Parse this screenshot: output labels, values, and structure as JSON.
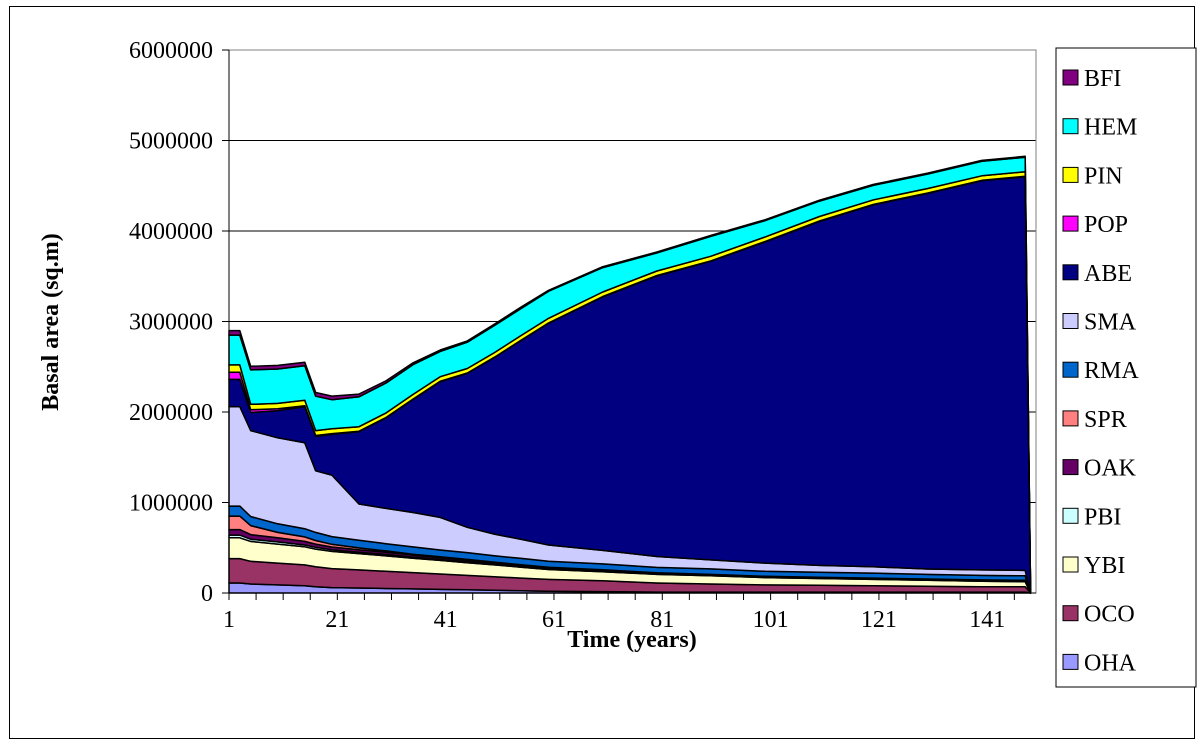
{
  "chart_data": {
    "type": "area",
    "stacked": true,
    "xlabel": "Time (years)",
    "ylabel": "Basal area (sq.m)",
    "xlim": [
      1,
      150
    ],
    "ylim": [
      0,
      6000000
    ],
    "x_ticks": [
      "1",
      "21",
      "41",
      "61",
      "81",
      "101",
      "121",
      "141"
    ],
    "y_ticks": [
      "0",
      "1000000",
      "2000000",
      "3000000",
      "4000000",
      "5000000",
      "6000000"
    ],
    "grid": "horizontal",
    "legend_position": "right",
    "x": [
      1,
      3,
      5,
      10,
      15,
      17,
      20,
      25,
      30,
      35,
      40,
      45,
      50,
      55,
      60,
      70,
      80,
      90,
      100,
      110,
      120,
      130,
      140,
      148,
      149
    ],
    "series": [
      {
        "name": "OHA",
        "color": "#9999ff",
        "values": [
          110000,
          110000,
          100000,
          90000,
          80000,
          70000,
          60000,
          55000,
          50000,
          45000,
          40000,
          35000,
          30000,
          25000,
          20000,
          15000,
          10000,
          10000,
          10000,
          10000,
          10000,
          10000,
          10000,
          10000,
          0
        ]
      },
      {
        "name": "OCO",
        "color": "#993366",
        "values": [
          270000,
          270000,
          250000,
          240000,
          230000,
          220000,
          210000,
          200000,
          190000,
          180000,
          170000,
          160000,
          150000,
          140000,
          130000,
          120000,
          100000,
          90000,
          80000,
          75000,
          70000,
          65000,
          60000,
          60000,
          0
        ]
      },
      {
        "name": "YBI",
        "color": "#ffffcc",
        "values": [
          230000,
          230000,
          220000,
          210000,
          200000,
          195000,
          190000,
          180000,
          170000,
          160000,
          150000,
          140000,
          130000,
          120000,
          110000,
          100000,
          95000,
          90000,
          80000,
          75000,
          70000,
          65000,
          60000,
          55000,
          0
        ]
      },
      {
        "name": "PBI",
        "color": "#ccffff",
        "values": [
          30000,
          30000,
          25000,
          25000,
          20000,
          20000,
          18000,
          15000,
          15000,
          12000,
          10000,
          10000,
          10000,
          8000,
          8000,
          6000,
          5000,
          5000,
          5000,
          5000,
          5000,
          5000,
          5000,
          5000,
          0
        ]
      },
      {
        "name": "OAK",
        "color": "#660066",
        "values": [
          60000,
          60000,
          50000,
          45000,
          40000,
          35000,
          30000,
          28000,
          25000,
          22000,
          20000,
          18000,
          16000,
          14000,
          12000,
          10000,
          8000,
          6000,
          5000,
          5000,
          5000,
          5000,
          5000,
          5000,
          0
        ]
      },
      {
        "name": "SPR",
        "color": "#ff8080",
        "values": [
          150000,
          150000,
          100000,
          60000,
          50000,
          40000,
          30000,
          20000,
          15000,
          10000,
          10000,
          8000,
          5000,
          5000,
          5000,
          5000,
          5000,
          5000,
          5000,
          5000,
          5000,
          5000,
          5000,
          5000,
          0
        ]
      },
      {
        "name": "RMA",
        "color": "#0066cc",
        "values": [
          110000,
          110000,
          100000,
          95000,
          90000,
          90000,
          85000,
          85000,
          80000,
          80000,
          75000,
          75000,
          70000,
          70000,
          65000,
          65000,
          60000,
          60000,
          55000,
          55000,
          55000,
          50000,
          50000,
          50000,
          0
        ]
      },
      {
        "name": "SMA",
        "color": "#ccccff",
        "values": [
          1100000,
          1100000,
          950000,
          950000,
          950000,
          680000,
          680000,
          400000,
          390000,
          380000,
          360000,
          280000,
          240000,
          210000,
          180000,
          150000,
          120000,
          100000,
          90000,
          75000,
          70000,
          60000,
          60000,
          60000,
          0
        ]
      },
      {
        "name": "ABE",
        "color": "#000080",
        "values": [
          300000,
          300000,
          200000,
          300000,
          400000,
          380000,
          450000,
          800000,
          1000000,
          1250000,
          1500000,
          1700000,
          1950000,
          2200000,
          2450000,
          2800000,
          3100000,
          3300000,
          3550000,
          3800000,
          4000000,
          4150000,
          4300000,
          4350000,
          0
        ]
      },
      {
        "name": "POP",
        "color": "#ff00ff",
        "values": [
          80000,
          80000,
          30000,
          20000,
          10000,
          10000,
          8000,
          5000,
          5000,
          5000,
          5000,
          5000,
          5000,
          5000,
          5000,
          5000,
          5000,
          5000,
          5000,
          5000,
          5000,
          5000,
          5000,
          5000,
          0
        ]
      },
      {
        "name": "PIN",
        "color": "#ffff00",
        "values": [
          80000,
          80000,
          60000,
          60000,
          60000,
          55000,
          55000,
          50000,
          50000,
          50000,
          50000,
          50000,
          50000,
          50000,
          50000,
          50000,
          50000,
          50000,
          50000,
          50000,
          50000,
          50000,
          50000,
          50000,
          0
        ]
      },
      {
        "name": "HEM",
        "color": "#00ffff",
        "values": [
          330000,
          330000,
          380000,
          380000,
          380000,
          380000,
          320000,
          330000,
          330000,
          330000,
          280000,
          290000,
          300000,
          300000,
          300000,
          270000,
          200000,
          220000,
          180000,
          170000,
          160000,
          160000,
          160000,
          160000,
          0
        ]
      },
      {
        "name": "BFI",
        "color": "#800080",
        "values": [
          50000,
          50000,
          40000,
          40000,
          40000,
          40000,
          40000,
          30000,
          25000,
          20000,
          15000,
          15000,
          15000,
          15000,
          10000,
          10000,
          10000,
          10000,
          10000,
          10000,
          10000,
          10000,
          10000,
          10000,
          0
        ]
      }
    ]
  }
}
